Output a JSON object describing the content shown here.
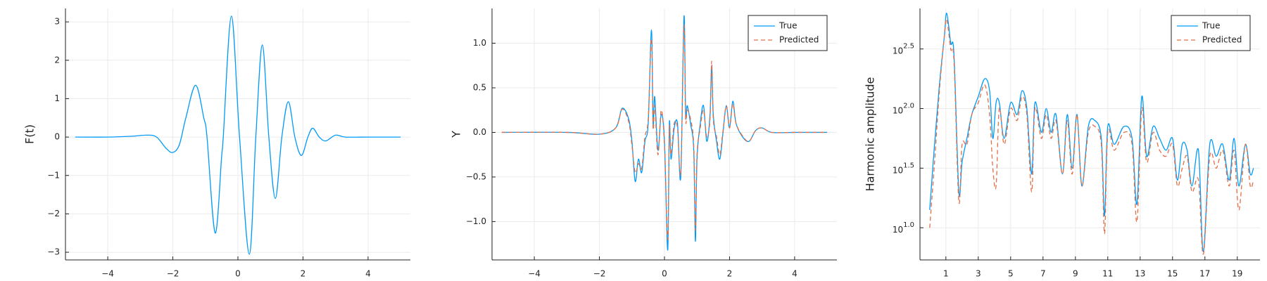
{
  "chart_data": [
    {
      "type": "line",
      "y_label": "F(t)",
      "grid": true,
      "xlim": [
        -5.3,
        5.3
      ],
      "ylim": [
        -3.2,
        3.35
      ],
      "xticks": [
        {
          "value": -4,
          "label": "−4"
        },
        {
          "value": -2,
          "label": "−2"
        },
        0,
        2,
        4
      ],
      "yticks": [
        {
          "value": -3,
          "label": "−3"
        },
        {
          "value": -2,
          "label": "−2"
        },
        {
          "value": -1,
          "label": "−1"
        },
        0,
        1,
        2,
        3
      ],
      "color": "#009af9",
      "x": [
        -5,
        -4,
        -3.3,
        -2.8,
        -2.5,
        -2.2,
        -2,
        -1.8,
        -1.6,
        -1.3,
        -1.05,
        -0.95,
        -0.7,
        -0.5,
        -0.45,
        -0.2,
        0.05,
        0.35,
        0.55,
        0.75,
        0.95,
        1.15,
        1.35,
        1.55,
        1.75,
        1.95,
        2.15,
        2.3,
        2.5,
        2.7,
        3.0,
        3.3,
        4,
        5
      ],
      "values": [
        0,
        0,
        0.02,
        0.05,
        0,
        -0.3,
        -0.4,
        -0.2,
        0.5,
        1.35,
        0.5,
        0,
        -2.5,
        -0.5,
        0,
        3.15,
        0,
        -3.05,
        0,
        2.4,
        0,
        -1.6,
        0,
        0.92,
        0,
        -0.48,
        0,
        0.23,
        0,
        -0.1,
        0.05,
        0,
        0,
        0
      ]
    },
    {
      "type": "line",
      "y_label": "Y",
      "grid": true,
      "legend": "upper right",
      "xlim": [
        -5.3,
        5.3
      ],
      "ylim": [
        -1.43,
        1.39
      ],
      "xticks": [
        {
          "value": -4,
          "label": "−4"
        },
        {
          "value": -2,
          "label": "−2"
        },
        0,
        2,
        4
      ],
      "yticks": [
        {
          "value": -1,
          "label": "−1.0"
        },
        {
          "value": -0.5,
          "label": "−0.5"
        },
        {
          "value": 0,
          "label": "0.0"
        },
        0.5,
        {
          "value": 1,
          "label": "1.0"
        }
      ],
      "x": [
        -5,
        -3,
        -2,
        -1.5,
        -1.3,
        -1.1,
        -1.0,
        -0.9,
        -0.8,
        -0.7,
        -0.6,
        -0.5,
        -0.4,
        -0.35,
        -0.3,
        -0.2,
        -0.1,
        0,
        0.1,
        0.15,
        0.2,
        0.3,
        0.4,
        0.5,
        0.6,
        0.65,
        0.7,
        0.8,
        0.9,
        0.95,
        1.0,
        1.1,
        1.2,
        1.3,
        1.4,
        1.45,
        1.5,
        1.6,
        1.7,
        1.8,
        1.9,
        2.0,
        2.1,
        2.2,
        2.4,
        2.6,
        2.8,
        3.0,
        3.3,
        4,
        5
      ],
      "series": [
        {
          "name": "True",
          "color": "#009af9",
          "linestyle": "solid",
          "values": [
            0,
            0,
            -0.02,
            0.05,
            0.27,
            0.15,
            -0.1,
            -0.55,
            -0.3,
            -0.45,
            -0.1,
            0.1,
            1.15,
            0.1,
            0.4,
            -0.2,
            0.2,
            -0.1,
            -1.32,
            0.1,
            -0.3,
            0.05,
            0.1,
            -0.5,
            1.3,
            0.2,
            0.3,
            0.1,
            -0.2,
            -1.22,
            -0.3,
            0.1,
            0.3,
            -0.1,
            0.2,
            0.75,
            0.2,
            -0.1,
            -0.3,
            0.0,
            0.3,
            0.05,
            0.35,
            0.1,
            -0.05,
            -0.1,
            0.02,
            0.05,
            0,
            0,
            0
          ]
        },
        {
          "name": "Predicted",
          "color": "#e26f46",
          "linestyle": "dashed",
          "values": [
            0,
            0,
            -0.02,
            0.05,
            0.26,
            0.12,
            -0.15,
            -0.45,
            -0.35,
            -0.4,
            -0.05,
            0.15,
            1.05,
            0.05,
            0.3,
            -0.25,
            0.25,
            -0.15,
            -1.2,
            0.05,
            -0.25,
            0.1,
            0.05,
            -0.45,
            1.2,
            0.15,
            0.25,
            0.15,
            -0.15,
            -1.1,
            -0.25,
            0.05,
            0.25,
            -0.05,
            0.15,
            0.8,
            0.15,
            -0.05,
            -0.25,
            0.02,
            0.3,
            0.05,
            0.32,
            0.1,
            -0.04,
            -0.1,
            0.02,
            0.05,
            0,
            0,
            0
          ]
        }
      ]
    },
    {
      "type": "line",
      "y_label": "Harmonic amplitude",
      "grid": true,
      "legend": "upper right",
      "log_y": true,
      "xlim": [
        -0.6,
        20.4
      ],
      "ylim": [
        5.37,
        692
      ],
      "xticks": [
        1,
        3,
        5,
        7,
        9,
        11,
        13,
        15,
        17,
        19
      ],
      "yticks": [
        {
          "value": 10,
          "label": "10",
          "exponent": "1.0"
        },
        {
          "value": 31.62,
          "label": "10",
          "exponent": "1.5"
        },
        {
          "value": 100,
          "label": "10",
          "exponent": "2.0"
        },
        {
          "value": 316.2,
          "label": "10",
          "exponent": "2.5"
        }
      ],
      "x": [
        0,
        0.3,
        0.6,
        0.9,
        1.05,
        1.3,
        1.5,
        1.8,
        2.0,
        2.3,
        2.6,
        3.0,
        3.4,
        3.7,
        3.9,
        4.1,
        4.3,
        4.6,
        5.0,
        5.4,
        5.7,
        6.0,
        6.3,
        6.5,
        6.9,
        7.2,
        7.5,
        7.8,
        8.2,
        8.5,
        8.8,
        9.1,
        9.4,
        9.8,
        10.2,
        10.6,
        10.8,
        11.0,
        11.4,
        12.0,
        12.5,
        12.8,
        13.1,
        13.4,
        13.8,
        14.2,
        14.6,
        15.0,
        15.3,
        15.6,
        15.9,
        16.2,
        16.6,
        16.9,
        17.3,
        17.7,
        18.1,
        18.5,
        18.8,
        19.1,
        19.5,
        19.8,
        20.0
      ],
      "series": [
        {
          "name": "True",
          "color": "#009af9",
          "linestyle": "solid",
          "values": [
            14.1,
            50.1,
            158,
            398,
            631,
            355,
            282,
            20,
            35.5,
            56.2,
            89.1,
            126,
            178,
            141,
            56.2,
            112,
            112,
            56.2,
            112,
            89.1,
            141,
            100,
            28.2,
            112,
            63.1,
            100,
            63.1,
            89.1,
            28.2,
            89.1,
            31.6,
            89.1,
            22.4,
            70.8,
            79.4,
            56.2,
            12.6,
            70.8,
            50.1,
            70.8,
            56.2,
            15.8,
            126,
            39.8,
            70.8,
            56.2,
            44.7,
            56.2,
            25.1,
            50.1,
            44.7,
            22.4,
            44.7,
            6.3,
            50.1,
            39.8,
            50.1,
            25.1,
            56.2,
            22.4,
            50.1,
            28.2,
            31.6
          ]
        },
        {
          "name": "Predicted",
          "color": "#e26f46",
          "linestyle": "dashed",
          "values": [
            10,
            35.5,
            141,
            398,
            562,
            316,
            251,
            16.6,
            50.1,
            50.1,
            89.1,
            112,
            158,
            89.1,
            31.6,
            22.4,
            100,
            50.1,
            100,
            79.4,
            126,
            89.1,
            20,
            100,
            56.2,
            89.1,
            56.2,
            79.4,
            28.2,
            79.4,
            28.2,
            89.1,
            22.4,
            63.1,
            70.8,
            50.1,
            8.9,
            63.1,
            44.7,
            63.1,
            50.1,
            11.2,
            100,
            35.5,
            63.1,
            44.7,
            39.8,
            50.1,
            22.4,
            31.6,
            39.8,
            20,
            25.1,
            6.0,
            39.8,
            31.6,
            44.7,
            22.4,
            44.7,
            14.1,
            50.1,
            22.4,
            25.1
          ]
        }
      ]
    }
  ]
}
